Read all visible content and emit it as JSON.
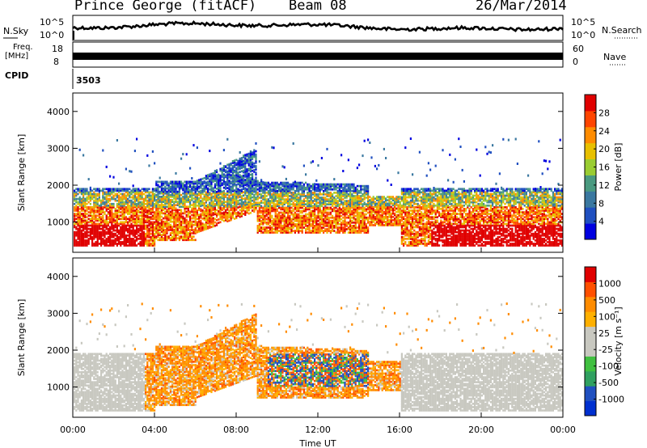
{
  "header": {
    "station": "Prince George (fitACF)",
    "beam": "Beam 08",
    "date": "26/Mar/2014"
  },
  "top_panels": {
    "nsky_label": "N.Sky",
    "nsky_ticks": [
      "10^5",
      "10^0"
    ],
    "nsearch_label": "N.Search",
    "nsearch_ticks": [
      "10^5",
      "10^0"
    ],
    "freq_label_line1": "Freq.",
    "freq_label_line2": "[MHz]",
    "freq_ticks": [
      "18",
      "8"
    ],
    "nave_label": "Nave",
    "nave_ticks": [
      "60",
      "0"
    ],
    "cpid_label": "CPID",
    "cpid_value": "3503"
  },
  "colors": {
    "power_scale": [
      "#0000e0",
      "#2050c0",
      "#3a78a0",
      "#4a9a80",
      "#9acd32",
      "#e8c000",
      "#ff8c00",
      "#ff4500",
      "#e00000"
    ],
    "velocity_scale": [
      "#e00000",
      "#ff5000",
      "#ff8c00",
      "#ffb000",
      "#c8c8c0",
      "#c8c8c0",
      "#40c040",
      "#30a060",
      "#2050c0",
      "#0030d0"
    ]
  },
  "chart_data": [
    {
      "type": "heatmap",
      "name": "power",
      "ylabel": "Slant Range [km]",
      "ylim": [
        180,
        4500
      ],
      "y_ticks": [
        "4000",
        "3000",
        "2000",
        "1000"
      ],
      "xlim": [
        0,
        24
      ],
      "colorbar_label": "Power [dB]",
      "colorbar_ticks": [
        "28",
        "24",
        "20",
        "16",
        "12",
        "8",
        "4"
      ],
      "colorbar_range": [
        0,
        32
      ]
    },
    {
      "type": "heatmap",
      "name": "velocity",
      "ylabel": "Slant Range [km]",
      "ylim": [
        180,
        4500
      ],
      "y_ticks": [
        "4000",
        "3000",
        "2000",
        "1000"
      ],
      "xlim": [
        0,
        24
      ],
      "xlabel": "Time UT",
      "x_ticks": [
        "00:00",
        "04:00",
        "08:00",
        "12:00",
        "16:00",
        "20:00",
        "00:00"
      ],
      "colorbar_label": "Velocity [m s⁻¹]",
      "colorbar_ticks": [
        "1000",
        "500",
        "100",
        "25",
        "-25",
        "-100",
        "-500",
        "-1000"
      ]
    }
  ]
}
